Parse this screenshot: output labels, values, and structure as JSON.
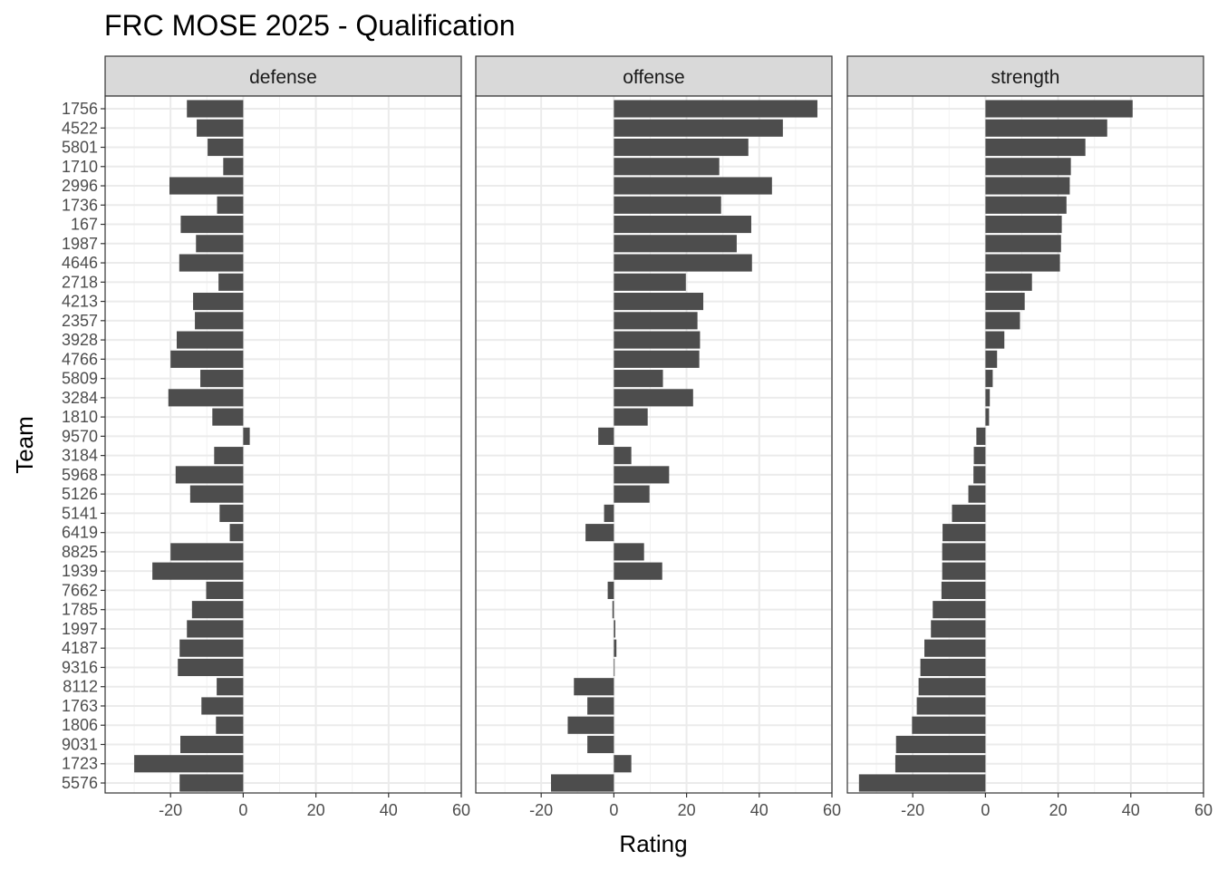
{
  "chart_data": {
    "type": "bar",
    "orientation": "horizontal",
    "title": "FRC MOSE 2025 - Qualification",
    "xlabel": "Rating",
    "ylabel": "Team",
    "xlim": [
      -38,
      60
    ],
    "x_ticks": [
      -20,
      0,
      20,
      40,
      60
    ],
    "x_tick_labels": [
      "-20",
      "0",
      "20",
      "40",
      "60"
    ],
    "grid": true,
    "bar_color": "#4d4d4d",
    "categories": [
      "1756",
      "4522",
      "5801",
      "1710",
      "2996",
      "1736",
      "167",
      "1987",
      "4646",
      "2718",
      "4213",
      "2357",
      "3928",
      "4766",
      "5809",
      "3284",
      "1810",
      "9570",
      "3184",
      "5968",
      "5126",
      "5141",
      "6419",
      "8825",
      "1939",
      "7662",
      "1785",
      "1997",
      "4187",
      "9316",
      "8112",
      "1763",
      "1806",
      "9031",
      "1723",
      "5576"
    ],
    "panels": [
      {
        "name": "defense",
        "values": [
          -15.5,
          -12.8,
          -9.8,
          -5.5,
          -20.3,
          -7.2,
          -17.2,
          -13,
          -17.6,
          -6.8,
          -13.8,
          -13.3,
          -18.3,
          -20,
          -11.8,
          -20.6,
          -8.5,
          1.8,
          -8,
          -18.6,
          -14.6,
          -6.5,
          -3.7,
          -20,
          -25,
          -10.2,
          -14.1,
          -15.5,
          -17.5,
          -18,
          -7.3,
          -11.5,
          -7.5,
          -17.3,
          -30,
          -17.5
        ]
      },
      {
        "name": "offense",
        "values": [
          56,
          46.5,
          37,
          29,
          43.5,
          29.5,
          37.8,
          33.8,
          38,
          19.8,
          24.6,
          23,
          23.7,
          23.5,
          13.5,
          21.8,
          9.3,
          -4.3,
          4.8,
          15.2,
          9.8,
          -2.7,
          -7.8,
          8.3,
          13.3,
          -1.7,
          -0.4,
          0.4,
          0.7,
          0.2,
          -11,
          -7.3,
          -12.7,
          -7.3,
          4.8,
          -17.3
        ]
      },
      {
        "name": "strength",
        "values": [
          40.5,
          33.5,
          27.5,
          23.5,
          23.2,
          22.3,
          21,
          20.8,
          20.5,
          12.8,
          10.8,
          9.5,
          5.2,
          3.2,
          2,
          1.2,
          1,
          -2.5,
          -3.2,
          -3.3,
          -4.7,
          -9.2,
          -11.8,
          -11.9,
          -11.9,
          -12.1,
          -14.5,
          -15,
          -16.8,
          -17.9,
          -18.4,
          -18.9,
          -20.2,
          -24.6,
          -24.8,
          -34.8
        ]
      }
    ]
  }
}
